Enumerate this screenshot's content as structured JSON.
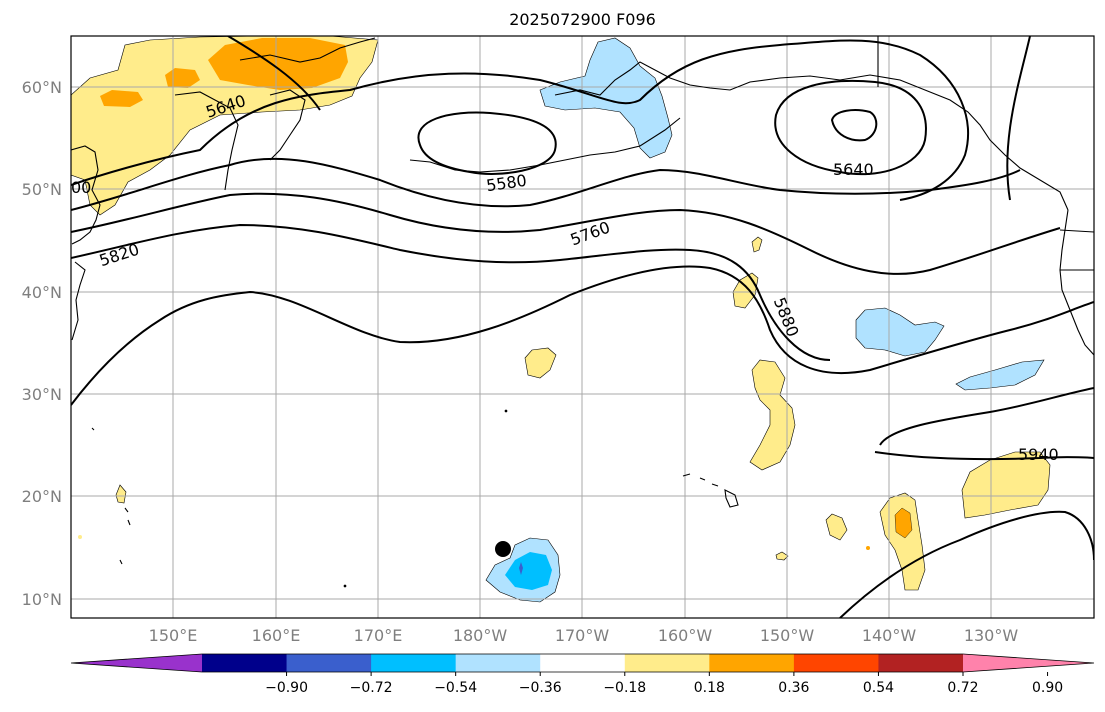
{
  "title": "2025072900 F096",
  "map": {
    "lat_labels": [
      "60°N",
      "50°N",
      "40°N",
      "30°N",
      "20°N",
      "10°N"
    ],
    "lon_labels": [
      "150°E",
      "160°E",
      "170°E",
      "180°W",
      "170°W",
      "160°W",
      "150°W",
      "140°W",
      "130°W"
    ],
    "contour_labels": [
      "5640",
      "5580",
      "5640",
      "5760",
      "5820",
      "5880",
      "5940",
      "00"
    ]
  },
  "colorbar": {
    "ticks": [
      "−0.90",
      "−0.72",
      "−0.54",
      "−0.36",
      "−0.18",
      "0.18",
      "0.36",
      "0.54",
      "0.72",
      "0.90"
    ],
    "colors": [
      "#9932cc",
      "#00008b",
      "#3a5fcd",
      "#00bfff",
      "#b0e2ff",
      "#ffffff",
      "#ffec8b",
      "#ffa500",
      "#ff4500",
      "#b22222",
      "#ff82ab"
    ]
  },
  "colors": {
    "land_outline": "#000000",
    "grid": "#a9a9a9"
  }
}
